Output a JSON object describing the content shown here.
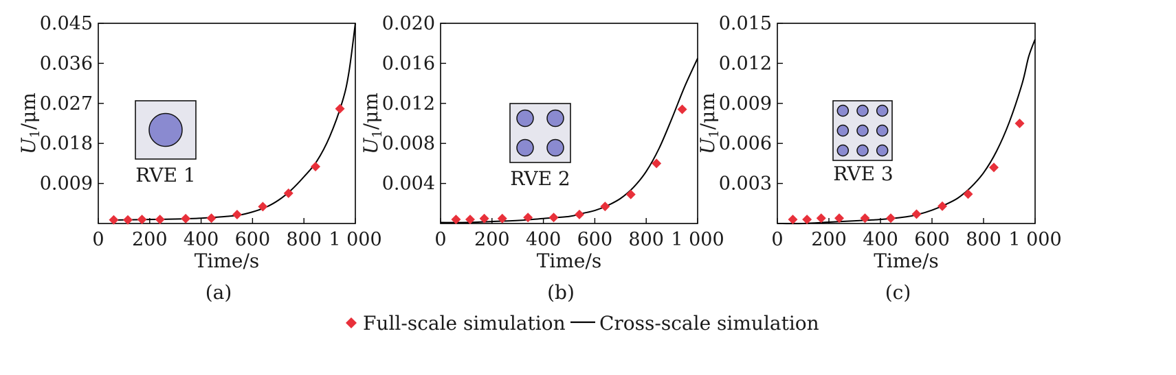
{
  "chart_data": [
    {
      "type": "scatter",
      "panel_label": "(a)",
      "xlabel": "Time/s",
      "ylabel_main": "U",
      "ylabel_sub": "1",
      "ylabel_unit": "/μm",
      "xlim": [
        0,
        1000
      ],
      "ylim": [
        0,
        0.045
      ],
      "xticks": [
        0,
        200,
        400,
        600,
        800,
        1000
      ],
      "xtick_labels": [
        "0",
        "200",
        "400",
        "600",
        "800",
        "1 000"
      ],
      "yticks": [
        0.009,
        0.018,
        0.027,
        0.036,
        0.045
      ],
      "ytick_labels": [
        "0.009",
        "0.018",
        "0.027",
        "0.036",
        "0.045"
      ],
      "grid": false,
      "inset": {
        "label": "RVE 1",
        "inclusions": "1x1"
      },
      "series": [
        {
          "name": "Full-scale simulation",
          "marker": "diamond",
          "color": "#e8303a",
          "x": [
            60,
            115,
            170,
            240,
            340,
            440,
            540,
            640,
            740,
            845,
            940
          ],
          "y": [
            0.0008,
            0.0008,
            0.0009,
            0.0009,
            0.0011,
            0.0012,
            0.002,
            0.0038,
            0.0068,
            0.0128,
            0.0258
          ]
        },
        {
          "name": "Cross-scale simulation",
          "style": "line",
          "color": "#000000",
          "x": [
            50,
            100,
            200,
            300,
            400,
            500,
            550,
            600,
            650,
            700,
            750,
            800,
            850,
            900,
            950,
            975,
            1000
          ],
          "y": [
            0.0008,
            0.0008,
            0.0009,
            0.001,
            0.0012,
            0.0016,
            0.0019,
            0.0026,
            0.0036,
            0.0052,
            0.0075,
            0.0105,
            0.014,
            0.0195,
            0.0275,
            0.034,
            0.0455
          ]
        }
      ]
    },
    {
      "type": "scatter",
      "panel_label": "(b)",
      "xlabel": "Time/s",
      "ylabel_main": "U",
      "ylabel_sub": "1",
      "ylabel_unit": "/μm",
      "xlim": [
        0,
        1000
      ],
      "ylim": [
        0,
        0.02
      ],
      "xticks": [
        0,
        200,
        400,
        600,
        800,
        1000
      ],
      "xtick_labels": [
        "0",
        "200",
        "400",
        "600",
        "800",
        "1 000"
      ],
      "yticks": [
        0.004,
        0.008,
        0.012,
        0.016,
        0.02
      ],
      "ytick_labels": [
        "0.004",
        "0.008",
        "0.012",
        "0.016",
        "0.020"
      ],
      "grid": false,
      "inset": {
        "label": "RVE 2",
        "inclusions": "2x2"
      },
      "series": [
        {
          "name": "Full-scale simulation",
          "marker": "diamond",
          "color": "#e8303a",
          "x": [
            60,
            115,
            170,
            240,
            340,
            440,
            540,
            640,
            740,
            840,
            940
          ],
          "y": [
            0.0004,
            0.0004,
            0.0005,
            0.0005,
            0.0006,
            0.0006,
            0.0009,
            0.0017,
            0.0029,
            0.006,
            0.0114
          ]
        },
        {
          "name": "Cross-scale simulation",
          "style": "line",
          "color": "#000000",
          "x": [
            0,
            100,
            200,
            300,
            400,
            500,
            550,
            600,
            650,
            700,
            750,
            800,
            850,
            900,
            950,
            1000
          ],
          "y": [
            0.0001,
            0.0001,
            0.0002,
            0.0003,
            0.0005,
            0.0007,
            0.001,
            0.0013,
            0.0018,
            0.0025,
            0.0036,
            0.0052,
            0.0075,
            0.0105,
            0.0137,
            0.0165
          ]
        }
      ]
    },
    {
      "type": "scatter",
      "panel_label": "(c)",
      "xlabel": "Time/s",
      "ylabel_main": "U",
      "ylabel_sub": "1",
      "ylabel_unit": "/μm",
      "xlim": [
        0,
        1000
      ],
      "ylim": [
        0,
        0.015
      ],
      "xticks": [
        0,
        200,
        400,
        600,
        800,
        1000
      ],
      "xtick_labels": [
        "0",
        "200",
        "400",
        "600",
        "800",
        "1 000"
      ],
      "yticks": [
        0.003,
        0.006,
        0.009,
        0.012,
        0.015
      ],
      "ytick_labels": [
        "0.003",
        "0.006",
        "0.009",
        "0.012",
        "0.015"
      ],
      "grid": false,
      "inset": {
        "label": "RVE 3",
        "inclusions": "3x3"
      },
      "series": [
        {
          "name": "Full-scale simulation",
          "marker": "diamond",
          "color": "#e8303a",
          "x": [
            60,
            115,
            170,
            240,
            340,
            440,
            540,
            640,
            740,
            840,
            940
          ],
          "y": [
            0.0003,
            0.0003,
            0.0004,
            0.0004,
            0.0004,
            0.0004,
            0.0007,
            0.0013,
            0.0022,
            0.0042,
            0.0075
          ]
        },
        {
          "name": "Cross-scale simulation",
          "style": "line",
          "color": "#000000",
          "x": [
            0,
            100,
            200,
            300,
            400,
            500,
            550,
            600,
            650,
            700,
            750,
            800,
            850,
            900,
            950,
            975,
            1000
          ],
          "y": [
            0,
            0,
            0.0001,
            0.0002,
            0.0003,
            0.0005,
            0.0007,
            0.001,
            0.0014,
            0.0019,
            0.0027,
            0.0038,
            0.0054,
            0.0076,
            0.0105,
            0.0125,
            0.0138
          ]
        }
      ]
    }
  ],
  "legend": {
    "items": [
      {
        "label": "Full-scale simulation",
        "marker": "diamond",
        "color": "#e8303a"
      },
      {
        "label": "Cross-scale simulation",
        "marker": "line",
        "color": "#000000"
      }
    ],
    "placement": "bottom-center"
  },
  "colors": {
    "marker": "#e8303a",
    "line": "#000000",
    "inset_bg": "#e6e6ee",
    "inclusion": "#8a8ad0"
  }
}
